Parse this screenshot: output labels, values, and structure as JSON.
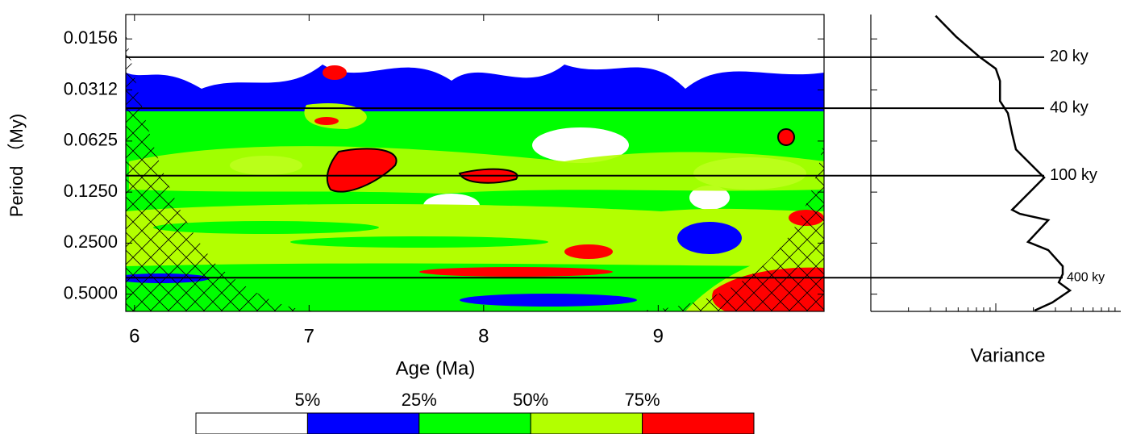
{
  "chart_data": [
    {
      "type": "contour",
      "xlabel": "Age (Ma)",
      "ylabel": "Period （My)",
      "xlim": [
        5.95,
        9.95
      ],
      "xticks": [
        6,
        7,
        8,
        9
      ],
      "ylim": [
        0.0112,
        0.632
      ],
      "yscale": "log",
      "yreverse": false,
      "yticks": [
        0.0156,
        0.0312,
        0.0625,
        {
          "value": 0.125,
          "label": "0.1250"
        },
        {
          "value": 0.25,
          "label": "0.2500"
        },
        {
          "value": 0.5,
          "label": "0.5000"
        }
      ],
      "period_lines": [
        {
          "value": 0.02,
          "label": "20 ky"
        },
        {
          "value": 0.04,
          "label": "40 ky"
        },
        {
          "value": 0.1,
          "label": "100 ky"
        },
        {
          "value": 0.4,
          "label": "400 ky"
        }
      ],
      "colorbar": {
        "colors": [
          "#ffffff",
          "#0000ff",
          "#00ff00",
          "#b3ff00",
          "#ff0000"
        ],
        "ticks": [
          {
            "value": 5,
            "label": "5%"
          },
          {
            "value": 25,
            "label": "25%"
          },
          {
            "value": 50,
            "label": "50%"
          },
          {
            "value": 75,
            "label": "75%"
          }
        ]
      }
    },
    {
      "type": "line",
      "xlabel": "Variance",
      "xlim": [
        0.1,
        10
      ],
      "xscale": "log",
      "ylim": [
        0.0112,
        0.632
      ],
      "yscale": "log",
      "color": "#000000",
      "x": [
        0.33,
        0.48,
        0.74,
        1.0,
        1.08,
        1.08,
        1.25,
        1.35,
        1.45,
        1.81,
        2.44,
        1.95,
        1.35,
        1.56,
        2.63,
        1.81,
        2.63,
        3.43,
        3.43,
        3.19,
        3.92,
        2.83,
        2.04
      ],
      "y": [
        0.0114,
        0.0151,
        0.0199,
        0.0234,
        0.0276,
        0.0363,
        0.0428,
        0.0563,
        0.0701,
        0.0824,
        0.1026,
        0.121,
        0.159,
        0.168,
        0.183,
        0.246,
        0.275,
        0.342,
        0.381,
        0.426,
        0.476,
        0.56,
        0.625
      ]
    }
  ]
}
